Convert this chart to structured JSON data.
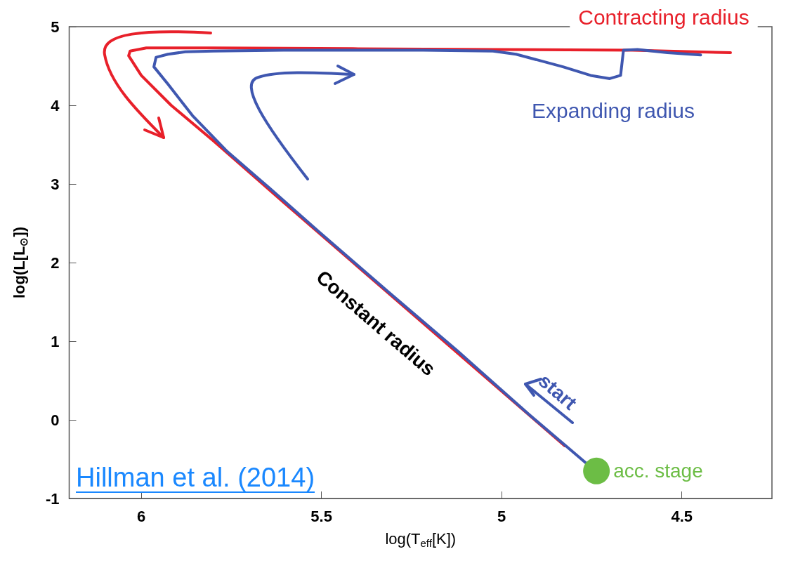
{
  "chart_data": {
    "type": "line",
    "xlabel": "log(T$_{eff}$[K])",
    "ylabel": "log(L[L$_{⊙}$])",
    "xlim": [
      6.2,
      4.25
    ],
    "xticks": [
      6,
      5.5,
      5,
      4.5
    ],
    "ylim": [
      -1,
      5
    ],
    "yticks": [
      -1,
      0,
      1,
      2,
      3,
      4,
      5
    ],
    "marker": "none",
    "line_style": "solid",
    "series": [
      {
        "color": "#e8202a",
        "x": [
          4.825,
          5.024,
          5.218,
          5.412,
          5.606,
          5.8,
          5.917,
          6.0,
          6.035,
          6.031,
          5.986,
          5.8,
          5.412,
          5.024,
          4.637,
          4.365
        ],
        "values": [
          -0.33,
          0.46,
          1.23,
          2.0,
          2.77,
          3.55,
          4.0,
          4.38,
          4.63,
          4.69,
          4.73,
          4.73,
          4.72,
          4.71,
          4.7,
          4.67
        ]
      },
      {
        "color": "#3f57b0",
        "x": [
          4.766,
          4.927,
          5.121,
          5.315,
          5.509,
          5.645,
          5.761,
          5.858,
          5.926,
          5.965,
          5.959,
          5.926,
          5.878,
          5.8,
          5.606,
          5.412,
          5.218,
          5.024,
          4.96,
          4.83,
          4.753,
          4.7,
          4.67,
          4.662,
          4.623,
          4.54,
          4.448
        ],
        "values": [
          -0.55,
          0.08,
          0.87,
          1.63,
          2.4,
          2.95,
          3.41,
          3.87,
          4.27,
          4.49,
          4.61,
          4.65,
          4.68,
          4.69,
          4.7,
          4.7,
          4.7,
          4.69,
          4.65,
          4.49,
          4.38,
          4.34,
          4.38,
          4.7,
          4.71,
          4.67,
          4.64
        ]
      },
      {
        "type": "scatter",
        "marker": "circle",
        "color": "#6cbd45",
        "x": [
          4.737
        ],
        "values": [
          -0.65
        ]
      }
    ],
    "annotations": [
      "Contracting radius",
      "Expanding radius",
      "Constant radius",
      "start",
      {
        "text": "acc. stage",
        "x": 4.737,
        "y": -0.65
      },
      "Hillman et al. (2014)"
    ]
  }
}
